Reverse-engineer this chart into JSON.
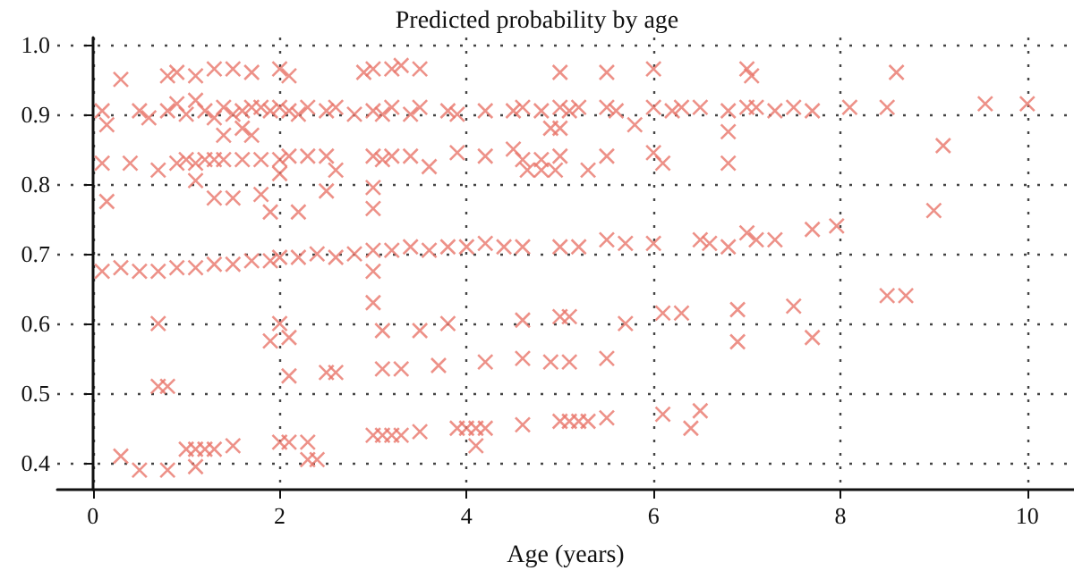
{
  "chart_data": {
    "type": "scatter",
    "title": "Predicted probability by age",
    "xlabel": "Age (years)",
    "xlim": [
      -0.38,
      10.5
    ],
    "xticks": [
      0,
      2,
      4,
      6,
      8,
      10
    ],
    "ylim": [
      0.362,
      1.01
    ],
    "yticks": [
      {
        "value": 0.4,
        "label": "0.4"
      },
      {
        "value": 0.5,
        "label": "0.5"
      },
      {
        "value": 0.6,
        "label": "0.6"
      },
      {
        "value": 0.7,
        "label": "0.7"
      },
      {
        "value": 0.8,
        "label": "0.8"
      },
      {
        "value": 0.9,
        "label": "0.9"
      },
      {
        "value": 1,
        "label": "1.0"
      }
    ],
    "grid": true,
    "marker": "cross",
    "series": [
      {
        "color": "#e8756a",
        "x": [
          0.1,
          0.15,
          0.5,
          0.6,
          0.8,
          0.9,
          1.0,
          1.1,
          1.2,
          1.3,
          1.4,
          1.5,
          1.6,
          1.7,
          1.8,
          1.9,
          2.0,
          2.1,
          2.2,
          2.3,
          2.5,
          2.6,
          2.8,
          3.0,
          3.1,
          3.2,
          3.4,
          3.5,
          3.8,
          3.9,
          4.2,
          4.5,
          4.6,
          4.8,
          5.0,
          5.1,
          5.2,
          5.5,
          5.6,
          6.0,
          6.2,
          6.3,
          6.5,
          6.8,
          7.0,
          7.1,
          7.3,
          7.5,
          7.7,
          8.1,
          8.5,
          9.55,
          10.0,
          0.3,
          0.8,
          0.9,
          1.1,
          1.3,
          1.5,
          1.7,
          2.0,
          2.1,
          2.9,
          3.0,
          3.2,
          3.3,
          3.5,
          5.0,
          5.5,
          6.0,
          7.0,
          7.05,
          8.6,
          4.9,
          5.0,
          5.8,
          6.8,
          1.4,
          1.6,
          1.7,
          0.1,
          0.4,
          0.7,
          0.9,
          1.0,
          1.1,
          1.2,
          1.3,
          1.4,
          1.6,
          1.8,
          2.0,
          2.1,
          2.3,
          2.5,
          2.6,
          3.0,
          3.1,
          3.2,
          3.4,
          3.6,
          3.9,
          4.2,
          4.5,
          4.6,
          4.8,
          5.0,
          5.5,
          6.0,
          6.1,
          6.8,
          9.1,
          4.65,
          4.8,
          4.95,
          5.3,
          1.1,
          2.0,
          3.0,
          0.15,
          1.3,
          1.5,
          1.8,
          2.5,
          3.0,
          2.2,
          1.9,
          0.1,
          0.3,
          0.5,
          0.7,
          0.9,
          1.1,
          1.3,
          1.5,
          1.7,
          1.9,
          2.0,
          2.2,
          2.4,
          2.6,
          2.8,
          3.0,
          3.2,
          3.4,
          3.6,
          3.8,
          4.0,
          4.2,
          4.4,
          4.6,
          5.0,
          5.2,
          5.5,
          5.7,
          6.0,
          6.5,
          6.6,
          6.8,
          7.0,
          7.1,
          7.3,
          7.7,
          7.96,
          9.0,
          3.0,
          0.7,
          2.0,
          1.9,
          2.1,
          3.0,
          3.1,
          3.5,
          3.8,
          4.6,
          5.0,
          5.1,
          5.7,
          6.1,
          6.3,
          6.9,
          7.5,
          8.5,
          8.7,
          7.7,
          6.9,
          0.7,
          0.8,
          2.1,
          2.5,
          2.6,
          3.1,
          3.3,
          3.7,
          4.2,
          4.6,
          4.9,
          5.1,
          5.5,
          0.3,
          0.5,
          0.8,
          1.0,
          1.1,
          1.2,
          1.3,
          1.5,
          1.1,
          2.0,
          2.1,
          2.3,
          2.3,
          2.4,
          3.0,
          3.1,
          3.2,
          3.3,
          3.5,
          3.9,
          4.0,
          4.1,
          4.2,
          4.1,
          4.6,
          5.0,
          5.1,
          5.2,
          5.3,
          5.5,
          6.1,
          6.5,
          6.4
        ],
        "values": [
          0.905,
          0.885,
          0.905,
          0.895,
          0.905,
          0.915,
          0.9,
          0.92,
          0.905,
          0.895,
          0.91,
          0.9,
          0.905,
          0.91,
          0.91,
          0.905,
          0.91,
          0.905,
          0.9,
          0.91,
          0.905,
          0.91,
          0.9,
          0.905,
          0.9,
          0.91,
          0.9,
          0.91,
          0.905,
          0.9,
          0.905,
          0.905,
          0.91,
          0.905,
          0.91,
          0.905,
          0.91,
          0.91,
          0.905,
          0.91,
          0.905,
          0.91,
          0.91,
          0.905,
          0.91,
          0.91,
          0.905,
          0.91,
          0.905,
          0.91,
          0.91,
          0.915,
          0.915,
          0.95,
          0.955,
          0.96,
          0.955,
          0.965,
          0.965,
          0.96,
          0.965,
          0.955,
          0.96,
          0.965,
          0.965,
          0.97,
          0.965,
          0.96,
          0.96,
          0.965,
          0.965,
          0.955,
          0.96,
          0.88,
          0.88,
          0.885,
          0.875,
          0.87,
          0.88,
          0.87,
          0.83,
          0.83,
          0.82,
          0.83,
          0.835,
          0.83,
          0.835,
          0.835,
          0.835,
          0.835,
          0.835,
          0.835,
          0.84,
          0.84,
          0.84,
          0.82,
          0.84,
          0.835,
          0.84,
          0.84,
          0.825,
          0.845,
          0.84,
          0.85,
          0.835,
          0.835,
          0.84,
          0.84,
          0.845,
          0.83,
          0.83,
          0.855,
          0.82,
          0.82,
          0.82,
          0.82,
          0.805,
          0.815,
          0.795,
          0.775,
          0.78,
          0.78,
          0.785,
          0.79,
          0.765,
          0.76,
          0.76,
          0.675,
          0.68,
          0.675,
          0.675,
          0.68,
          0.68,
          0.685,
          0.685,
          0.69,
          0.69,
          0.695,
          0.695,
          0.7,
          0.695,
          0.7,
          0.705,
          0.705,
          0.71,
          0.705,
          0.71,
          0.71,
          0.715,
          0.71,
          0.71,
          0.71,
          0.71,
          0.72,
          0.715,
          0.715,
          0.72,
          0.715,
          0.71,
          0.73,
          0.72,
          0.72,
          0.735,
          0.74,
          0.762,
          0.675,
          0.6,
          0.6,
          0.575,
          0.58,
          0.63,
          0.59,
          0.59,
          0.6,
          0.605,
          0.61,
          0.61,
          0.6,
          0.615,
          0.615,
          0.62,
          0.625,
          0.64,
          0.64,
          0.58,
          0.574,
          0.51,
          0.51,
          0.525,
          0.53,
          0.53,
          0.535,
          0.535,
          0.54,
          0.545,
          0.55,
          0.545,
          0.545,
          0.55,
          0.41,
          0.39,
          0.39,
          0.42,
          0.42,
          0.42,
          0.42,
          0.425,
          0.395,
          0.43,
          0.43,
          0.43,
          0.405,
          0.405,
          0.44,
          0.44,
          0.44,
          0.44,
          0.445,
          0.45,
          0.45,
          0.45,
          0.45,
          0.425,
          0.455,
          0.46,
          0.46,
          0.46,
          0.46,
          0.465,
          0.47,
          0.475,
          0.45
        ]
      }
    ]
  }
}
